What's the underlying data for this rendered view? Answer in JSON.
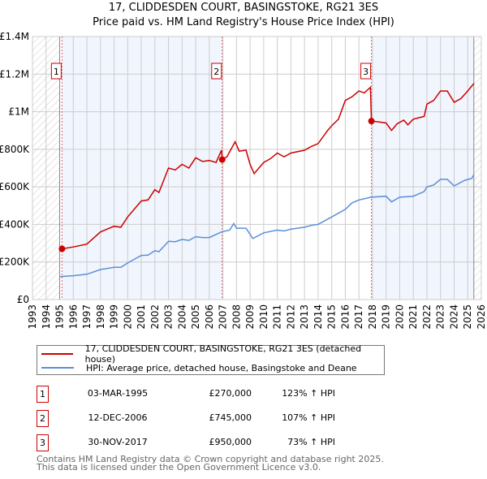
{
  "title": "17, CLIDDESDEN COURT, BASINGSTOKE, RG21 3ES",
  "subtitle": "Price paid vs. HM Land Registry's House Price Index (HPI)",
  "chart_data": {
    "type": "line",
    "title": "17, CLIDDESDEN COURT, BASINGSTOKE, RG21 3ES",
    "xlabel": "",
    "ylabel": "",
    "xlim": [
      1993,
      2026
    ],
    "ylim": [
      0,
      1400000
    ],
    "yticks": [
      0,
      200000,
      400000,
      600000,
      800000,
      1000000,
      1200000,
      1400000
    ],
    "ytick_labels": [
      "£0",
      "£200K",
      "£400K",
      "£600K",
      "£800K",
      "£1M",
      "£1.2M",
      "£1.4M"
    ],
    "xticks": [
      1993,
      1994,
      1995,
      1996,
      1997,
      1998,
      1999,
      2000,
      2001,
      2002,
      2003,
      2004,
      2005,
      2006,
      2007,
      2008,
      2009,
      2010,
      2011,
      2012,
      2013,
      2014,
      2015,
      2016,
      2017,
      2018,
      2019,
      2020,
      2021,
      2022,
      2023,
      2024,
      2025,
      2026
    ],
    "grid": true,
    "series": [
      {
        "name": "17, CLIDDESDEN COURT, BASINGSTOKE, RG21 3ES (detached house)",
        "color": "#cc0000",
        "x": [
          1995.17,
          1996,
          1997,
          1998,
          1999,
          1999.5,
          2000,
          2001,
          2001.5,
          2002,
          2002.3,
          2003,
          2003.5,
          2004,
          2004.5,
          2005,
          2005.5,
          2006,
          2006.5,
          2006.9,
          2006.95,
          2007.3,
          2007.9,
          2008.2,
          2008.7,
          2009,
          2009.3,
          2010,
          2010.5,
          2011,
          2011.5,
          2012,
          2013,
          2013.5,
          2014,
          2014.7,
          2015,
          2015.5,
          2016,
          2016.5,
          2017,
          2017.4,
          2017.85,
          2017.92,
          2018.5,
          2019,
          2019.4,
          2019.8,
          2020.3,
          2020.6,
          2021,
          2021.8,
          2022,
          2022.5,
          2023,
          2023.5,
          2024,
          2024.5,
          2025,
          2025.45
        ],
        "y": [
          270000,
          280000,
          295000,
          360000,
          390000,
          385000,
          440000,
          525000,
          530000,
          585000,
          570000,
          700000,
          690000,
          720000,
          700000,
          755000,
          735000,
          740000,
          730000,
          795000,
          745000,
          760000,
          840000,
          790000,
          795000,
          720000,
          670000,
          730000,
          750000,
          780000,
          760000,
          780000,
          795000,
          815000,
          830000,
          900000,
          925000,
          960000,
          1060000,
          1080000,
          1110000,
          1100000,
          1130000,
          950000,
          945000,
          940000,
          900000,
          935000,
          955000,
          930000,
          960000,
          975000,
          1040000,
          1060000,
          1110000,
          1110000,
          1050000,
          1070000,
          1110000,
          1150000
        ]
      },
      {
        "name": "HPI: Average price, detached house, Basingstoke and Deane",
        "color": "#5b8fd6",
        "x": [
          1995.0,
          1996,
          1997,
          1998,
          1999,
          1999.5,
          2000,
          2001,
          2001.5,
          2002,
          2002.3,
          2003,
          2003.5,
          2004,
          2004.5,
          2005,
          2005.5,
          2006,
          2006.9,
          2007.5,
          2007.8,
          2008,
          2008.7,
          2009.2,
          2010,
          2011,
          2011.5,
          2012,
          2013,
          2013.5,
          2014,
          2015,
          2016,
          2016.5,
          2017,
          2017.9,
          2019,
          2019.4,
          2020,
          2021,
          2021.8,
          2022,
          2022.5,
          2023,
          2023.5,
          2024,
          2024.8,
          2025.3,
          2025.45
        ],
        "y": [
          122000,
          127000,
          135000,
          160000,
          172000,
          172000,
          195000,
          235000,
          237000,
          260000,
          255000,
          310000,
          308000,
          320000,
          315000,
          335000,
          330000,
          330000,
          360000,
          370000,
          405000,
          380000,
          380000,
          325000,
          355000,
          370000,
          365000,
          375000,
          385000,
          395000,
          400000,
          440000,
          480000,
          515000,
          530000,
          545000,
          550000,
          520000,
          545000,
          550000,
          575000,
          600000,
          610000,
          640000,
          640000,
          605000,
          635000,
          645000,
          665000
        ]
      }
    ],
    "sales": [
      {
        "label": "1",
        "x": 1995.17,
        "y": 270000
      },
      {
        "label": "2",
        "x": 2006.95,
        "y": 745000
      },
      {
        "label": "3",
        "x": 2017.92,
        "y": 950000
      }
    ],
    "data_range": [
      1995.0,
      2025.45
    ]
  },
  "legend": [
    {
      "label": "17, CLIDDESDEN COURT, BASINGSTOKE, RG21 3ES (detached house)",
      "color": "#cc0000"
    },
    {
      "label": "HPI: Average price, detached house, Basingstoke and Deane",
      "color": "#5b8fd6"
    }
  ],
  "table": [
    {
      "num": "1",
      "date": "03-MAR-1995",
      "price": "£270,000",
      "hpi": "123% ↑ HPI"
    },
    {
      "num": "2",
      "date": "12-DEC-2006",
      "price": "£745,000",
      "hpi": "107% ↑ HPI"
    },
    {
      "num": "3",
      "date": "30-NOV-2017",
      "price": "£950,000",
      "hpi": "73% ↑ HPI"
    }
  ],
  "footer": [
    "Contains HM Land Registry data © Crown copyright and database right 2025.",
    "This data is licensed under the Open Government Licence v3.0."
  ]
}
